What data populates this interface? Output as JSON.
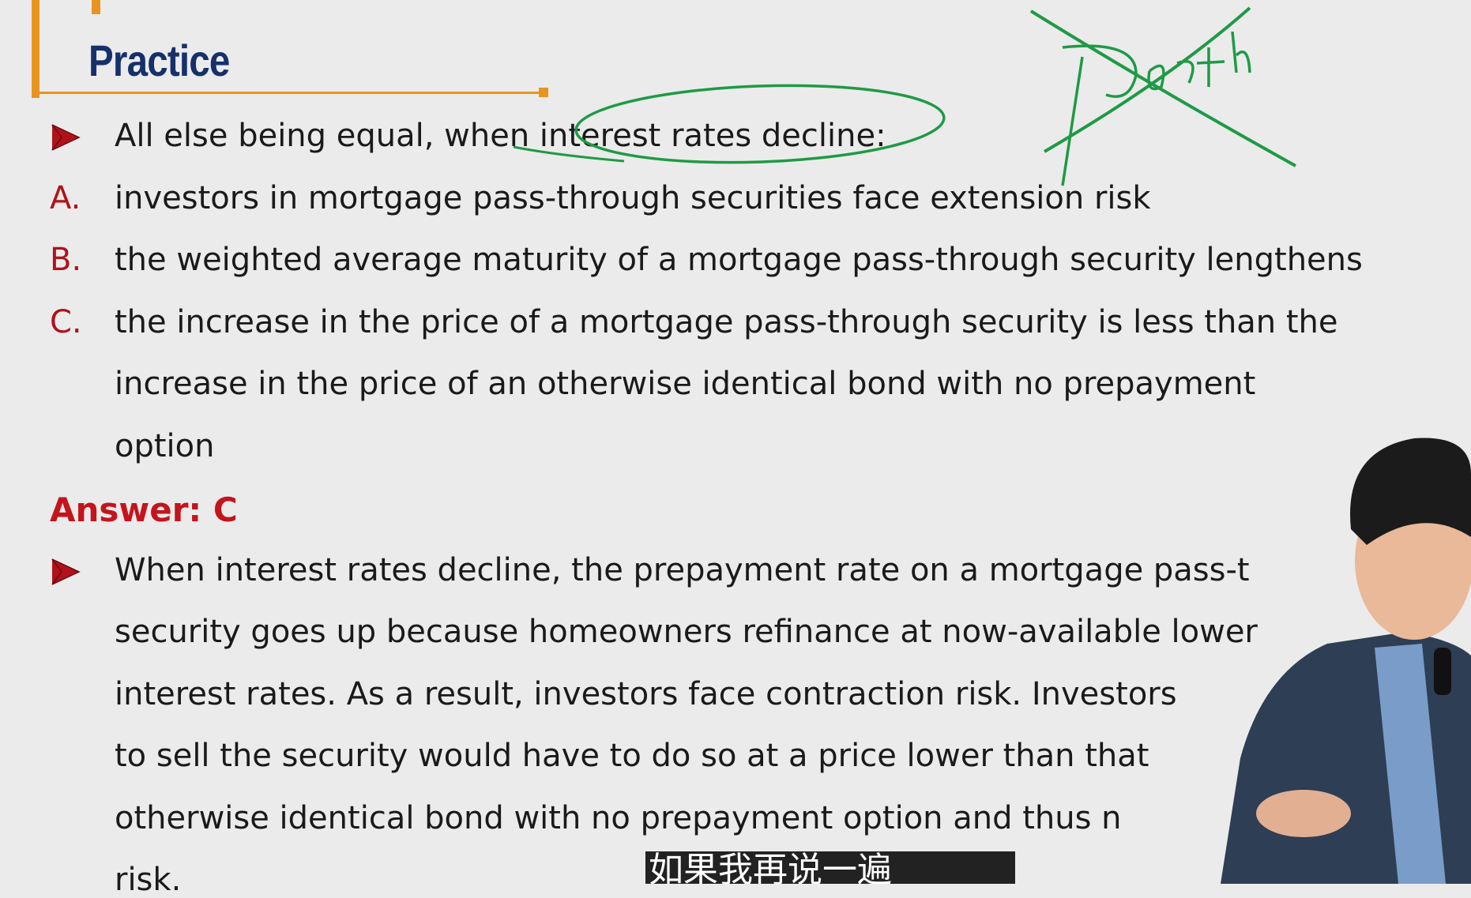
{
  "slide": {
    "title": "Practice",
    "question": "All else being equal, when interest rates decline:",
    "options": [
      {
        "label": "A.",
        "lines": [
          "investors in mortgage pass-through securities face extension risk"
        ]
      },
      {
        "label": "B.",
        "lines": [
          "the weighted average maturity of a mortgage pass-through security lengthens"
        ]
      },
      {
        "label": "C.",
        "lines": [
          "the increase in the price of a mortgage pass-through security is less than the",
          "increase in the price of an otherwise identical bond with no prepayment",
          "option"
        ]
      }
    ],
    "answer": "Answer: C",
    "explanation": [
      "When interest rates decline, the prepayment rate on a mortgage pass-t",
      "security goes up because homeowners refinance at now-available lower",
      "interest rates. As a result, investors face contraction risk. Investors",
      "to sell the security would have to do so at a price lower than that",
      "otherwise identical bond with no prepayment option and thus n",
      "risk."
    ]
  },
  "subtitle": "如果我再说一遍"
}
